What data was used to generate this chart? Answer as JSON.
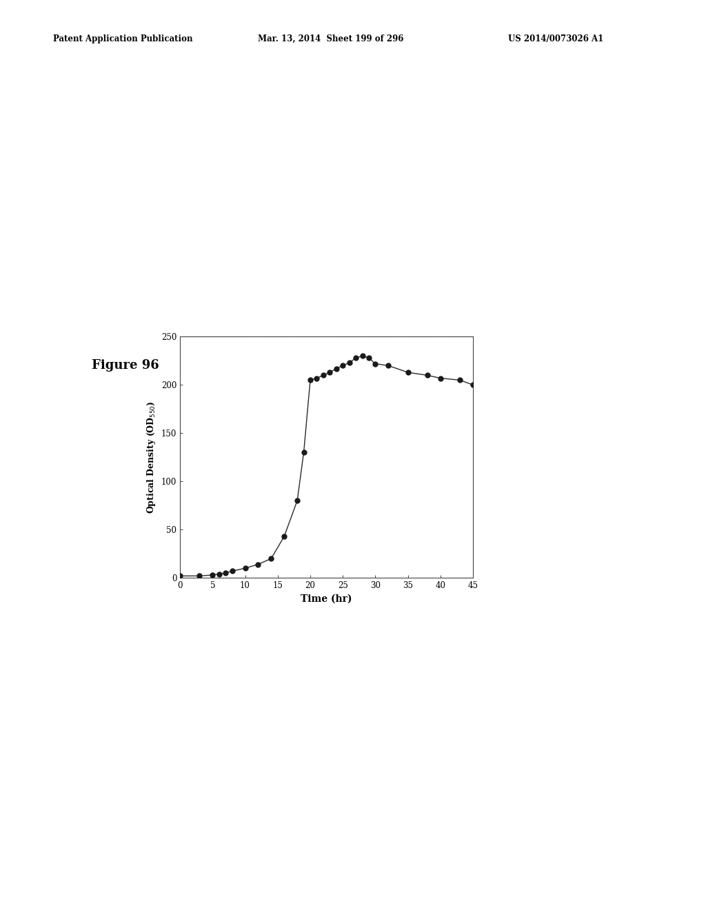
{
  "x": [
    0,
    3,
    5,
    6,
    7,
    8,
    10,
    12,
    14,
    16,
    18,
    19,
    20,
    21,
    22,
    23,
    24,
    25,
    26,
    27,
    28,
    29,
    30,
    32,
    35,
    38,
    40,
    43,
    45
  ],
  "y": [
    2,
    2,
    3,
    4,
    5,
    7,
    10,
    14,
    20,
    43,
    80,
    130,
    205,
    207,
    210,
    213,
    217,
    220,
    223,
    228,
    230,
    228,
    222,
    220,
    213,
    210,
    207,
    205,
    200
  ],
  "xlabel": "Time (hr)",
  "ylabel": "Optical Density (OD$_{550}$)",
  "xlim": [
    0,
    45
  ],
  "ylim": [
    0,
    250
  ],
  "xticks": [
    0,
    5,
    10,
    15,
    20,
    25,
    30,
    35,
    40,
    45
  ],
  "yticks": [
    0,
    50,
    100,
    150,
    200,
    250
  ],
  "figure_label": "Figure 96",
  "header_left": "Patent Application Publication",
  "header_mid": "Mar. 13, 2014  Sheet 199 of 296",
  "header_right": "US 2014/0073026 A1",
  "line_color": "#2a2a2a",
  "marker_color": "#1a1a1a",
  "bg_color": "#ffffff",
  "grid_color": "#bbbbbb"
}
